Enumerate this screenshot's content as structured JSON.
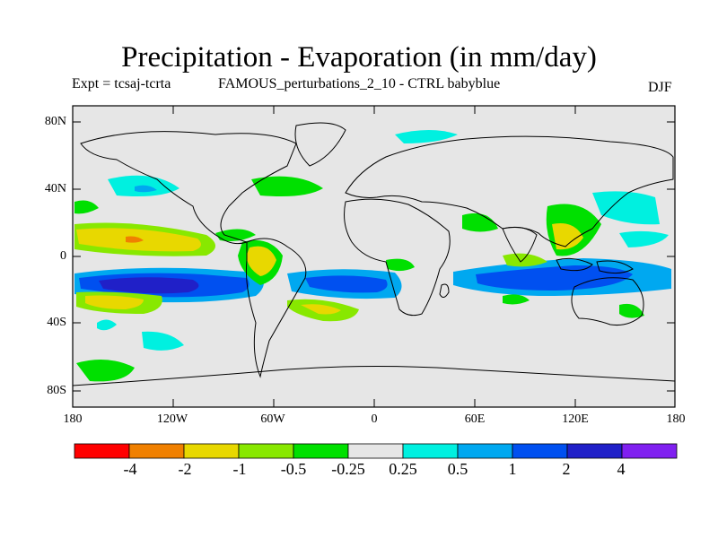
{
  "title": "Precipitation - Evaporation (in mm/day)",
  "subtitle_left": "Expt = tcsaj-tcrta",
  "subtitle_center": "FAMOUS_perturbations_2_10 - CTRL babyblue",
  "season": "DJF",
  "lat_labels": [
    "80N",
    "40N",
    "0",
    "40S",
    "80S"
  ],
  "lon_labels": [
    "180",
    "120W",
    "60W",
    "0",
    "60E",
    "120E",
    "180"
  ],
  "colorbar": {
    "colors": [
      "#ff0000",
      "#f08000",
      "#e8d800",
      "#88e800",
      "#00e000",
      "#e6e6e6",
      "#00f0e0",
      "#00a8f0",
      "#0050f0",
      "#2020c8",
      "#8020f0"
    ],
    "labels": [
      "-4",
      "-2",
      "-1",
      "-0.5",
      "-0.25",
      "0.25",
      "0.5",
      "1",
      "2",
      "4"
    ]
  },
  "colors": {
    "land_bg": "#e6e6e6",
    "frame": "#000000"
  }
}
